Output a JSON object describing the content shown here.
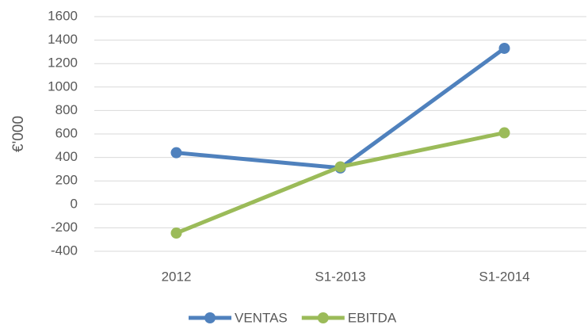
{
  "chart_data": {
    "type": "line",
    "y_label": "€'000",
    "categories": [
      "2012",
      "S1-2013",
      "S1-2014"
    ],
    "series": [
      {
        "name": "VENTAS",
        "color": "#4f81bd",
        "values": [
          440,
          310,
          1330
        ]
      },
      {
        "name": "EBITDA",
        "color": "#9bbb59",
        "values": [
          -245,
          320,
          610
        ]
      }
    ],
    "ylim": [
      -400,
      1600
    ],
    "yticks": [
      -400,
      -200,
      0,
      200,
      400,
      600,
      800,
      1000,
      1200,
      1400,
      1600
    ],
    "grid": true,
    "legend": "bottom"
  }
}
